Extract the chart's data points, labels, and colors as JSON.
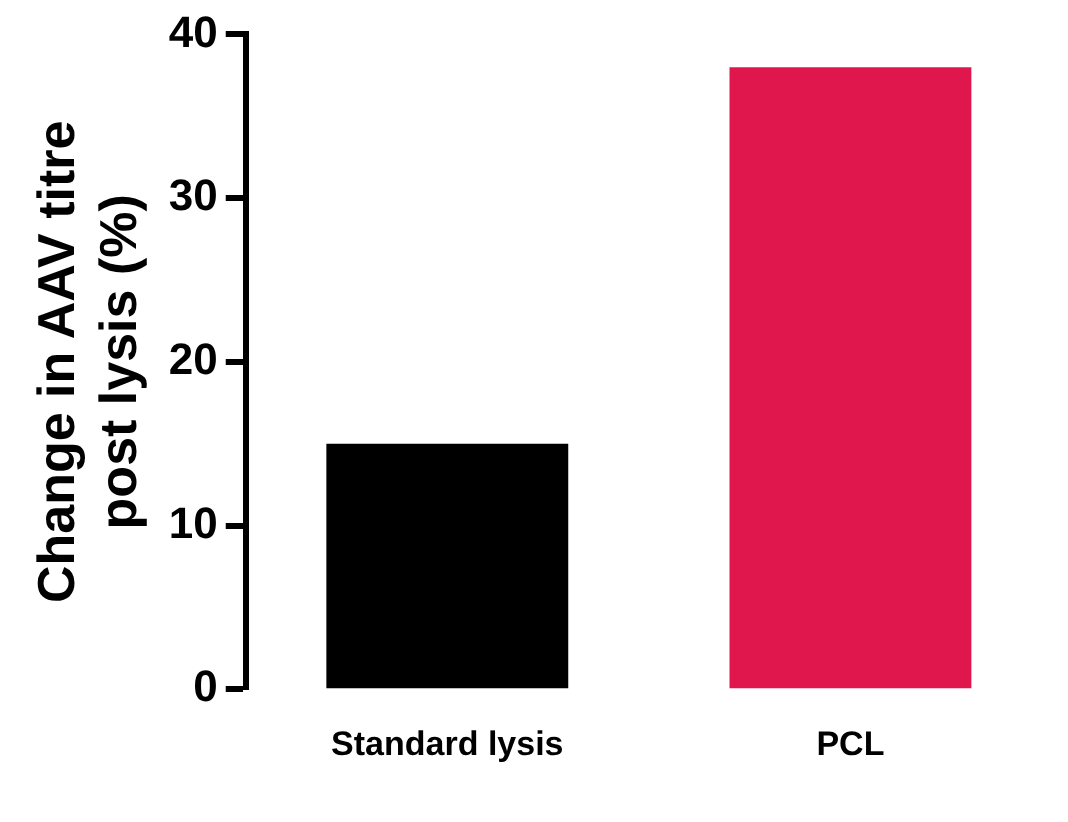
{
  "chart_data": {
    "type": "bar",
    "ylabel": "Change in AAV titre post lysis (%)",
    "categories": [
      "Standard lysis",
      "PCL"
    ],
    "values": [
      15,
      38
    ],
    "colors": [
      "#000000",
      "#e0174d"
    ],
    "ylim": [
      0,
      40
    ],
    "yticks": [
      0,
      10,
      20,
      30,
      40
    ],
    "grid": false,
    "legend": false
  }
}
